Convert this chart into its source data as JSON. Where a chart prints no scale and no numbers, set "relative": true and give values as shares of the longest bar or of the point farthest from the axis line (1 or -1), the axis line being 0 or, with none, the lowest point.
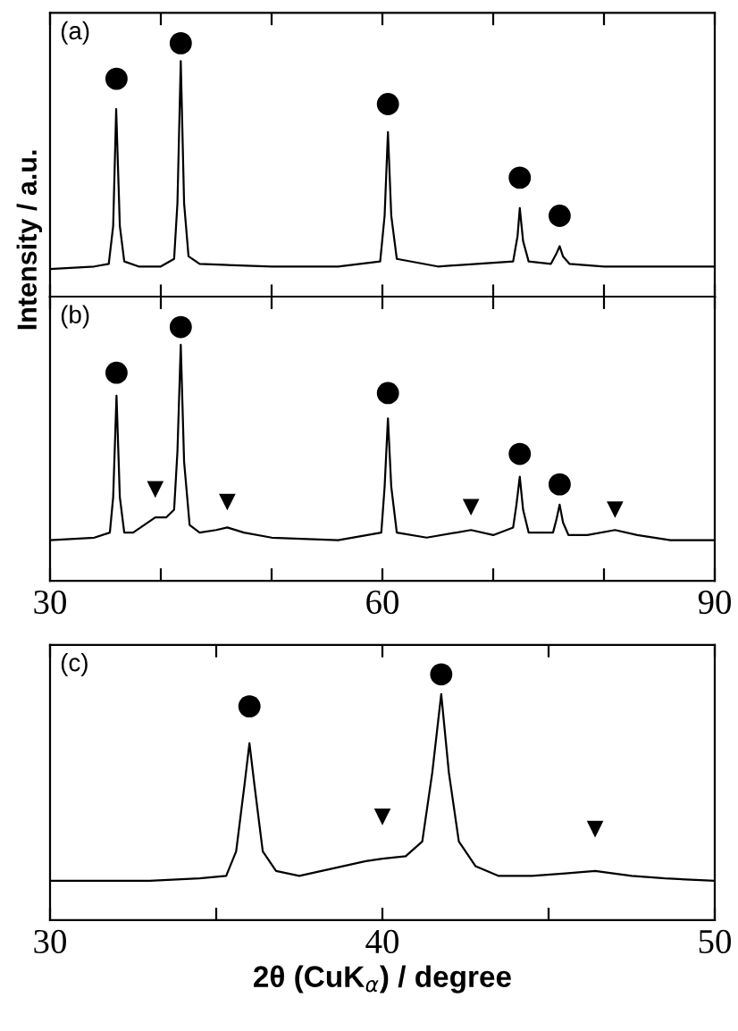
{
  "chart_data": [
    {
      "type": "line",
      "relative": true,
      "xlim": [
        30,
        90
      ],
      "xticks": [
        30,
        40,
        50,
        60,
        70,
        80,
        90
      ],
      "tick_labels": false,
      "grid": false,
      "legend": false,
      "marker": "none",
      "line_style": "solid",
      "series": [
        {
          "color": "#000000",
          "x": [
            30,
            34,
            35.3,
            35.7,
            35.97,
            36.3,
            36.7,
            38,
            40,
            41.2,
            41.5,
            41.8,
            42.1,
            42.5,
            43.5,
            50,
            56,
            59.8,
            60.2,
            60.5,
            60.8,
            61.3,
            65,
            71.8,
            72.2,
            72.4,
            72.7,
            73.2,
            75.2,
            75.7,
            76.0,
            76.3,
            76.9,
            80,
            90
          ],
          "values": [
            0.11,
            0.12,
            0.13,
            0.28,
            0.74,
            0.28,
            0.14,
            0.12,
            0.12,
            0.15,
            0.37,
            0.93,
            0.37,
            0.16,
            0.13,
            0.12,
            0.12,
            0.14,
            0.32,
            0.65,
            0.32,
            0.15,
            0.12,
            0.14,
            0.24,
            0.35,
            0.22,
            0.14,
            0.13,
            0.17,
            0.2,
            0.16,
            0.13,
            0.12,
            0.12
          ]
        },
        {
          "type": "scatter",
          "marker": "circle",
          "color": "#000000",
          "x": [
            36,
            41.8,
            60.5,
            72.4,
            76
          ],
          "values": [
            0.86,
            1.0,
            0.76,
            0.47,
            0.32
          ]
        }
      ],
      "annotations": [
        "(a)"
      ]
    },
    {
      "type": "line",
      "relative": true,
      "xlim": [
        30,
        90
      ],
      "xticks": [
        30,
        {
          "value": 40,
          "label": null
        },
        {
          "value": 50,
          "label": null
        },
        60,
        {
          "value": 70,
          "label": null
        },
        {
          "value": 80,
          "label": null
        },
        90
      ],
      "tick_labels": "x",
      "grid": false,
      "legend": false,
      "marker": "none",
      "line_style": "solid",
      "ylabel": "Intensity / a.u.",
      "series": [
        {
          "color": "#000000",
          "x": [
            30,
            34,
            35.4,
            35.7,
            36,
            36.3,
            36.7,
            37.5,
            38.5,
            39.5,
            40.5,
            41.2,
            41.5,
            41.8,
            42.1,
            42.6,
            43.5,
            45,
            46,
            47.5,
            50,
            56,
            59.9,
            60.2,
            60.5,
            60.8,
            61.3,
            64,
            68,
            70,
            71.8,
            72.1,
            72.4,
            72.7,
            73.2,
            75.4,
            75.7,
            76,
            76.3,
            76.8,
            78.5,
            81,
            83,
            86,
            90
          ],
          "values": [
            0.16,
            0.17,
            0.19,
            0.33,
            0.73,
            0.33,
            0.19,
            0.19,
            0.22,
            0.25,
            0.25,
            0.28,
            0.51,
            0.93,
            0.47,
            0.22,
            0.19,
            0.2,
            0.21,
            0.19,
            0.17,
            0.16,
            0.19,
            0.37,
            0.64,
            0.37,
            0.19,
            0.17,
            0.2,
            0.18,
            0.21,
            0.3,
            0.41,
            0.28,
            0.19,
            0.19,
            0.24,
            0.3,
            0.23,
            0.18,
            0.18,
            0.2,
            0.18,
            0.16,
            0.16
          ]
        },
        {
          "type": "scatter",
          "marker": "circle",
          "color": "#000000",
          "x": [
            36,
            41.8,
            60.5,
            72.4,
            76
          ],
          "values": [
            0.82,
            1.0,
            0.74,
            0.5,
            0.38
          ]
        },
        {
          "type": "scatter",
          "marker": "triangle_down",
          "color": "#000000",
          "x": [
            39.5,
            46,
            68,
            81
          ],
          "values": [
            0.36,
            0.31,
            0.29,
            0.28
          ]
        }
      ],
      "annotations": [
        "(b)"
      ]
    },
    {
      "type": "line",
      "relative": true,
      "xlim": [
        30,
        50
      ],
      "xticks": [
        30,
        {
          "value": 35,
          "label": null
        },
        40,
        {
          "value": 45,
          "label": null
        },
        50
      ],
      "tick_labels": "x",
      "grid": false,
      "legend": false,
      "marker": "none",
      "line_style": "solid",
      "xlabel": "2θ (CuK$_{α}$) / degree",
      "series": [
        {
          "color": "#000000",
          "x": [
            30,
            33,
            34.5,
            35.3,
            35.6,
            35.85,
            36,
            36.15,
            36.4,
            36.8,
            37.5,
            38.5,
            39.5,
            40,
            40.7,
            41.2,
            41.5,
            41.77,
            42.0,
            42.3,
            42.8,
            43.5,
            44.5,
            45.5,
            46.4,
            47.5,
            48.5,
            50
          ],
          "values": [
            0.16,
            0.16,
            0.17,
            0.18,
            0.28,
            0.55,
            0.72,
            0.55,
            0.28,
            0.2,
            0.18,
            0.21,
            0.24,
            0.25,
            0.26,
            0.32,
            0.6,
            0.92,
            0.6,
            0.32,
            0.22,
            0.18,
            0.18,
            0.19,
            0.2,
            0.18,
            0.17,
            0.16
          ]
        },
        {
          "type": "scatter",
          "marker": "circle",
          "color": "#000000",
          "x": [
            36,
            41.77
          ],
          "values": [
            0.87,
            1.0
          ]
        },
        {
          "type": "scatter",
          "marker": "triangle_down",
          "color": "#000000",
          "x": [
            40,
            46.4
          ],
          "values": [
            0.42,
            0.37
          ]
        }
      ],
      "annotations": [
        "(c)"
      ]
    }
  ]
}
